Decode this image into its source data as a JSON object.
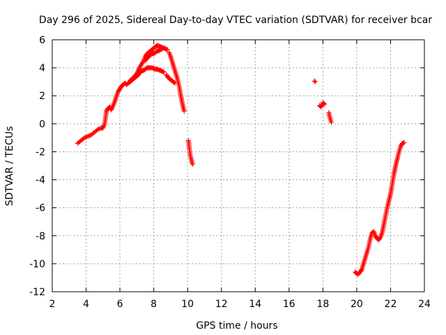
{
  "chart_data": {
    "type": "scatter",
    "title": "Day 296 of 2025, Sidereal Day-to-day VTEC variation (SDTVAR) for receiver bcar",
    "xlabel": "GPS time / hours",
    "ylabel": "SDTVAR / TECUs",
    "xlim": [
      2,
      24
    ],
    "ylim": [
      -12,
      6
    ],
    "xticks": [
      2,
      4,
      6,
      8,
      10,
      12,
      14,
      16,
      18,
      20,
      22,
      24
    ],
    "yticks": [
      -12,
      -10,
      -8,
      -6,
      -4,
      -2,
      0,
      2,
      4,
      6
    ],
    "grid": true,
    "marker": "plus",
    "color": "#ff0000",
    "series": [
      {
        "name": "SDTVAR",
        "segments": [
          [
            [
              3.5,
              -1.4
            ],
            [
              3.7,
              -1.2
            ],
            [
              3.9,
              -1.0
            ],
            [
              4.1,
              -0.9
            ],
            [
              4.3,
              -0.8
            ],
            [
              4.5,
              -0.6
            ],
            [
              4.7,
              -0.4
            ],
            [
              4.9,
              -0.3
            ],
            [
              5.0,
              -0.3
            ],
            [
              5.1,
              0.0
            ],
            [
              5.2,
              0.9
            ],
            [
              5.3,
              1.1
            ],
            [
              5.4,
              1.2
            ],
            [
              5.5,
              1.0
            ],
            [
              5.6,
              1.3
            ],
            [
              5.7,
              1.6
            ],
            [
              5.8,
              2.0
            ],
            [
              5.9,
              2.3
            ],
            [
              6.0,
              2.5
            ],
            [
              6.1,
              2.7
            ],
            [
              6.2,
              2.8
            ],
            [
              6.3,
              2.9
            ],
            [
              6.4,
              2.8
            ],
            [
              6.5,
              2.9
            ],
            [
              6.6,
              3.0
            ],
            [
              6.7,
              3.1
            ],
            [
              6.8,
              3.2
            ],
            [
              6.9,
              3.3
            ],
            [
              7.0,
              3.4
            ],
            [
              7.1,
              3.5
            ],
            [
              7.2,
              3.7
            ],
            [
              7.3,
              3.8
            ],
            [
              7.4,
              3.8
            ],
            [
              7.5,
              3.9
            ],
            [
              7.6,
              4.0
            ],
            [
              7.7,
              4.0
            ],
            [
              7.8,
              4.0
            ],
            [
              7.9,
              4.0
            ],
            [
              8.0,
              3.95
            ],
            [
              8.1,
              3.9
            ],
            [
              8.2,
              3.9
            ],
            [
              8.3,
              3.85
            ],
            [
              8.4,
              3.8
            ],
            [
              8.5,
              3.75
            ],
            [
              8.6,
              3.7
            ]
          ],
          [
            [
              6.6,
              3.1
            ],
            [
              6.8,
              3.3
            ],
            [
              7.0,
              3.6
            ],
            [
              7.2,
              4.1
            ],
            [
              7.4,
              4.5
            ],
            [
              7.5,
              4.8
            ],
            [
              7.6,
              5.0
            ],
            [
              7.7,
              5.1
            ],
            [
              7.8,
              5.2
            ],
            [
              7.9,
              5.3
            ],
            [
              8.0,
              5.4
            ],
            [
              8.1,
              5.5
            ],
            [
              8.2,
              5.6
            ],
            [
              8.3,
              5.55
            ],
            [
              8.4,
              5.5
            ],
            [
              8.5,
              5.45
            ],
            [
              8.6,
              5.4
            ],
            [
              8.7,
              5.35
            ],
            [
              8.8,
              5.3
            ]
          ],
          [
            [
              7.5,
              4.5
            ],
            [
              7.6,
              4.7
            ],
            [
              7.7,
              4.8
            ],
            [
              7.8,
              4.9
            ],
            [
              7.9,
              5.0
            ],
            [
              8.0,
              5.0
            ],
            [
              8.1,
              5.1
            ],
            [
              8.2,
              5.2
            ],
            [
              8.3,
              5.2
            ],
            [
              8.4,
              5.3
            ],
            [
              8.5,
              5.35
            ]
          ],
          [
            [
              8.75,
              3.5
            ],
            [
              8.85,
              3.3
            ],
            [
              8.95,
              3.2
            ],
            [
              9.05,
              3.1
            ],
            [
              9.15,
              3.0
            ],
            [
              9.25,
              2.9
            ]
          ],
          [
            [
              8.9,
              5.1
            ],
            [
              9.0,
              4.8
            ],
            [
              9.1,
              4.4
            ],
            [
              9.2,
              4.0
            ],
            [
              9.3,
              3.6
            ],
            [
              9.4,
              3.2
            ],
            [
              9.5,
              2.7
            ],
            [
              9.6,
              2.0
            ],
            [
              9.7,
              1.4
            ],
            [
              9.8,
              0.9
            ]
          ],
          [
            [
              10.05,
              -1.2
            ],
            [
              10.1,
              -1.7
            ],
            [
              10.15,
              -2.2
            ],
            [
              10.25,
              -2.7
            ],
            [
              10.3,
              -2.9
            ]
          ],
          [
            [
              17.5,
              3.05
            ],
            [
              17.55,
              3.0
            ]
          ],
          [
            [
              17.8,
              1.3
            ],
            [
              17.9,
              1.2
            ],
            [
              18.0,
              1.5
            ],
            [
              18.1,
              1.4
            ]
          ],
          [
            [
              18.35,
              0.8
            ],
            [
              18.4,
              0.5
            ],
            [
              18.45,
              0.3
            ],
            [
              18.5,
              0.1
            ]
          ],
          [
            [
              19.9,
              -10.6
            ],
            [
              20.0,
              -10.7
            ],
            [
              20.1,
              -10.75
            ],
            [
              20.2,
              -10.6
            ],
            [
              20.3,
              -10.4
            ],
            [
              20.4,
              -10.0
            ],
            [
              20.5,
              -9.6
            ],
            [
              20.6,
              -9.2
            ],
            [
              20.7,
              -8.8
            ],
            [
              20.8,
              -8.2
            ],
            [
              20.9,
              -7.8
            ],
            [
              21.0,
              -7.7
            ],
            [
              21.1,
              -8.0
            ],
            [
              21.2,
              -8.2
            ],
            [
              21.3,
              -8.3
            ],
            [
              21.4,
              -8.1
            ],
            [
              21.5,
              -7.8
            ],
            [
              21.6,
              -7.2
            ],
            [
              21.7,
              -6.6
            ],
            [
              21.8,
              -6.0
            ],
            [
              21.9,
              -5.5
            ],
            [
              22.0,
              -5.0
            ],
            [
              22.1,
              -4.3
            ],
            [
              22.2,
              -3.6
            ],
            [
              22.3,
              -3.0
            ],
            [
              22.4,
              -2.5
            ],
            [
              22.5,
              -2.0
            ],
            [
              22.6,
              -1.6
            ],
            [
              22.7,
              -1.4
            ],
            [
              22.8,
              -1.35
            ]
          ]
        ]
      }
    ]
  }
}
